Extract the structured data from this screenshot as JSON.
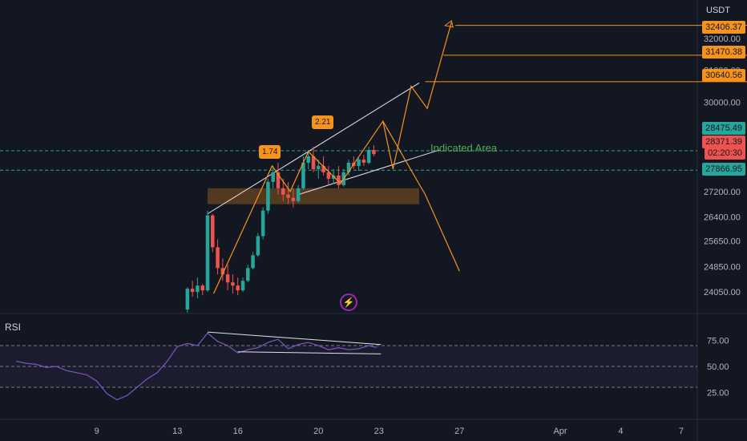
{
  "currency": "USDT",
  "rsi_label": "RSI",
  "indicated_area_label": "Indicated Area",
  "fib_labels": [
    "1.74",
    "2.21"
  ],
  "price_tags": {
    "targets": [
      "32406.37",
      "31470.38",
      "30640.56"
    ],
    "upper_green": "28475.49",
    "current": "28371.39",
    "countdown": "02:20:30",
    "lower_green": "27866.95"
  },
  "colors": {
    "background": "#131722",
    "up": "#26a69a",
    "down": "#ef5350",
    "projection": "#f7931a",
    "rsi": "#7e57c2",
    "zone": "#f7931a"
  },
  "chart_data": {
    "type": "candlestick",
    "ylim": [
      23400,
      33200
    ],
    "y_ticks": [
      {
        "value": 32000,
        "label": "32000.00"
      },
      {
        "value": 31000,
        "label": "31000.00"
      },
      {
        "value": 30000,
        "label": "30000.00"
      },
      {
        "value": 28800,
        "label": "28800.00"
      },
      {
        "value": 27200,
        "label": "27200.00"
      },
      {
        "value": 26400,
        "label": "26400.00"
      },
      {
        "value": 25650,
        "label": "25650.00"
      },
      {
        "value": 24850,
        "label": "24850.00"
      },
      {
        "value": 24050,
        "label": "24050.00"
      }
    ],
    "x_ticks": [
      {
        "day": 9,
        "label": "9"
      },
      {
        "day": 13,
        "label": "13"
      },
      {
        "day": 16,
        "label": "16"
      },
      {
        "day": 20,
        "label": "20"
      },
      {
        "day": 23,
        "label": "23"
      },
      {
        "day": 27,
        "label": "27"
      },
      {
        "day": 32,
        "label": "Apr"
      },
      {
        "day": 35,
        "label": "4"
      },
      {
        "day": 38,
        "label": "7"
      }
    ],
    "candles": [
      [
        13.5,
        23500,
        24200,
        23400,
        24150
      ],
      [
        13.75,
        24150,
        24400,
        23900,
        24050
      ],
      [
        14.0,
        24050,
        24500,
        23850,
        24250
      ],
      [
        14.25,
        24250,
        24300,
        23950,
        24100
      ],
      [
        14.5,
        24100,
        26600,
        24050,
        26450
      ],
      [
        14.75,
        26450,
        26500,
        25300,
        25450
      ],
      [
        15.0,
        25450,
        25700,
        24600,
        24800
      ],
      [
        15.25,
        24800,
        25100,
        24400,
        24600
      ],
      [
        15.5,
        24600,
        24900,
        24100,
        24350
      ],
      [
        15.75,
        24350,
        24600,
        24000,
        24250
      ],
      [
        16.0,
        24250,
        24500,
        23950,
        24100
      ],
      [
        16.25,
        24100,
        24500,
        24050,
        24400
      ],
      [
        16.5,
        24400,
        24900,
        24350,
        24800
      ],
      [
        16.75,
        24800,
        25300,
        24750,
        25200
      ],
      [
        17.0,
        25200,
        25900,
        25150,
        25800
      ],
      [
        17.25,
        25800,
        26700,
        25700,
        26600
      ],
      [
        17.5,
        26600,
        27600,
        26500,
        27500
      ],
      [
        17.75,
        27500,
        28000,
        27300,
        27800
      ],
      [
        18.0,
        27800,
        28100,
        27100,
        27300
      ],
      [
        18.25,
        27300,
        27600,
        26900,
        27100
      ],
      [
        18.5,
        27100,
        27500,
        26800,
        27000
      ],
      [
        18.75,
        27000,
        27300,
        26700,
        26900
      ],
      [
        19.0,
        26900,
        27400,
        26850,
        27300
      ],
      [
        19.25,
        27300,
        28300,
        27250,
        28100
      ],
      [
        19.5,
        28100,
        28500,
        27900,
        28300
      ],
      [
        19.75,
        28300,
        28600,
        27800,
        27900
      ],
      [
        20.0,
        27900,
        28200,
        27600,
        28000
      ],
      [
        20.25,
        28000,
        28300,
        27700,
        27800
      ],
      [
        20.5,
        27800,
        28000,
        27400,
        27600
      ],
      [
        20.75,
        27600,
        27900,
        27450,
        27700
      ],
      [
        21.0,
        27700,
        28000,
        27300,
        27400
      ],
      [
        21.25,
        27400,
        27900,
        27350,
        27800
      ],
      [
        21.5,
        27800,
        28200,
        27700,
        28100
      ],
      [
        21.75,
        28100,
        28300,
        27900,
        28000
      ],
      [
        22.0,
        28000,
        28250,
        27850,
        28200
      ],
      [
        22.25,
        28200,
        28350,
        28000,
        28100
      ],
      [
        22.5,
        28100,
        28600,
        28050,
        28500
      ],
      [
        22.75,
        28500,
        28650,
        28300,
        28371
      ]
    ],
    "projection": [
      {
        "day": 14.8,
        "price": 24000
      },
      {
        "day": 17.7,
        "price": 28000
      },
      {
        "day": 18.6,
        "price": 27200
      },
      {
        "day": 19.5,
        "price": 28450
      },
      {
        "day": 21.1,
        "price": 27450
      },
      {
        "day": 23.2,
        "price": 29400
      },
      {
        "day": 23.7,
        "price": 27900
      },
      {
        "day": 24.6,
        "price": 30500
      },
      {
        "day": 25.4,
        "price": 29800
      },
      {
        "day": 26.6,
        "price": 32500
      }
    ],
    "projection_down": [
      {
        "day": 23.2,
        "price": 29400
      },
      {
        "day": 25.3,
        "price": 27100
      },
      {
        "day": 27.0,
        "price": 24700
      }
    ],
    "channel_upper": [
      {
        "day": 14.5,
        "price": 26500
      },
      {
        "day": 25.0,
        "price": 30600
      }
    ],
    "channel_lower": [
      {
        "day": 19.0,
        "price": 27100
      },
      {
        "day": 26.0,
        "price": 28500
      }
    ],
    "demand_zone": {
      "from_day": 14.5,
      "to_day": 25.0,
      "low": 26800,
      "high": 27300
    },
    "target_lines": [
      {
        "price": 32406.37,
        "from_day": 26.8
      },
      {
        "price": 31470.38,
        "from_day": 26.2
      },
      {
        "price": 30640.56,
        "from_day": 25.3
      }
    ],
    "dashed_levels": [
      28475.49,
      27866.95
    ],
    "rsi": {
      "ylim": [
        0,
        100
      ],
      "ticks": [
        {
          "value": 75,
          "label": "75.00"
        },
        {
          "value": 50,
          "label": "50.00"
        },
        {
          "value": 25,
          "label": "25.00"
        }
      ],
      "bands": [
        70,
        30
      ],
      "values": [
        [
          5.0,
          55
        ],
        [
          5.5,
          53
        ],
        [
          6.0,
          52
        ],
        [
          6.5,
          49
        ],
        [
          7.0,
          50
        ],
        [
          7.5,
          46
        ],
        [
          8.0,
          44
        ],
        [
          8.5,
          42
        ],
        [
          9.0,
          36
        ],
        [
          9.5,
          24
        ],
        [
          10.0,
          18
        ],
        [
          10.5,
          22
        ],
        [
          11.0,
          30
        ],
        [
          11.5,
          38
        ],
        [
          12.0,
          44
        ],
        [
          12.5,
          55
        ],
        [
          13.0,
          69
        ],
        [
          13.5,
          72
        ],
        [
          14.0,
          70
        ],
        [
          14.5,
          82
        ],
        [
          15.0,
          74
        ],
        [
          15.5,
          70
        ],
        [
          16.0,
          63
        ],
        [
          16.5,
          66
        ],
        [
          17.0,
          68
        ],
        [
          17.5,
          73
        ],
        [
          18.0,
          76
        ],
        [
          18.5,
          67
        ],
        [
          19.0,
          71
        ],
        [
          19.5,
          73
        ],
        [
          20.0,
          70
        ],
        [
          20.5,
          66
        ],
        [
          21.0,
          68
        ],
        [
          21.5,
          66
        ],
        [
          22.0,
          67
        ],
        [
          22.5,
          70
        ],
        [
          22.9,
          68
        ]
      ],
      "trend_upper": [
        {
          "day": 14.5,
          "price": 83
        },
        {
          "day": 23.1,
          "price": 71
        }
      ],
      "trend_lower": [
        {
          "day": 16.0,
          "price": 64
        },
        {
          "day": 23.1,
          "price": 62
        }
      ]
    }
  }
}
